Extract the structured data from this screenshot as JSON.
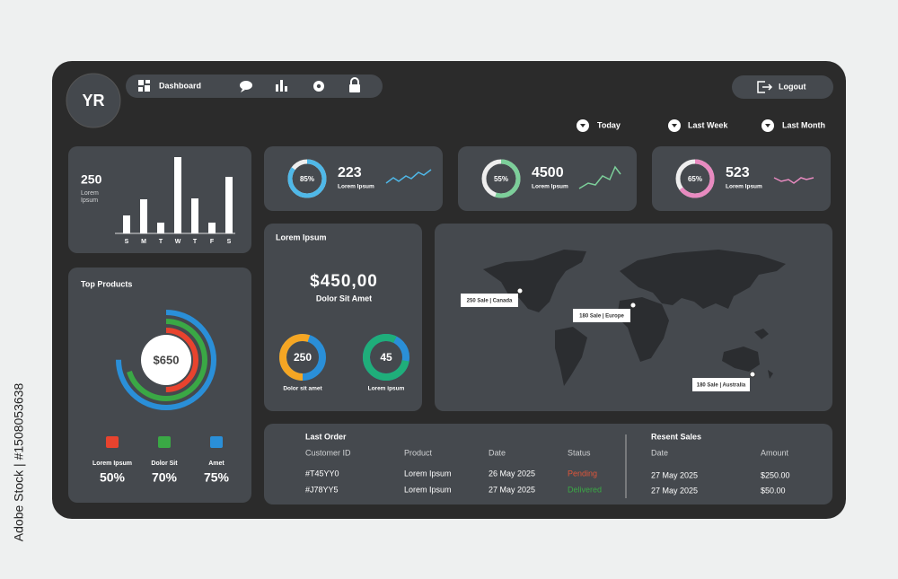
{
  "watermark": "Adobe Stock | #1508053638",
  "avatar": "YR",
  "nav": {
    "dashboard": "Dashboard",
    "logout": "Logout"
  },
  "filters": [
    "Today",
    "Last Week",
    "Last Month"
  ],
  "summary": {
    "value": 250,
    "label_lines": [
      "Lorem",
      "Ipsum"
    ],
    "bars": {
      "categories": [
        "S",
        "M",
        "T",
        "W",
        "T",
        "F",
        "S"
      ],
      "values": [
        20,
        38,
        12,
        85,
        39,
        12,
        63
      ]
    }
  },
  "stats": [
    {
      "percent": 85,
      "percent_label": "85%",
      "value": 223,
      "label": "Lorem Ipsum",
      "color": "#4fb8e8"
    },
    {
      "percent": 55,
      "percent_label": "55%",
      "value": 4500,
      "label": "Lorem Ipsum",
      "color": "#7ccf9a"
    },
    {
      "percent": 65,
      "percent_label": "65%",
      "value": 523,
      "label": "Lorem Ipsum",
      "color": "#e88ac0"
    }
  ],
  "top_products": {
    "title": "Top Products",
    "center": "$650",
    "items": [
      {
        "name": "Lorem Ipsum",
        "value": 50,
        "label": "50%",
        "color": "#e8432e"
      },
      {
        "name": "Dolor Sit",
        "value": 70,
        "label": "70%",
        "color": "#3aa845"
      },
      {
        "name": "Amet",
        "value": 75,
        "label": "75%",
        "color": "#2a8fd8"
      }
    ]
  },
  "revenue": {
    "title": "Lorem Ipsum",
    "amount": "$450,00",
    "subtitle": "Dolor Sit Amet",
    "donuts": [
      {
        "value": 250,
        "label": "Dolor sit amet"
      },
      {
        "value": 45,
        "label": "Lorem ipsum"
      }
    ]
  },
  "map": {
    "labels": [
      "250 Sale | Canada",
      "180 Sale | Europe",
      "180 Sale | Australia"
    ]
  },
  "last_order": {
    "title": "Last Order",
    "headers": [
      "Customer ID",
      "Product",
      "Date",
      "Status"
    ],
    "rows": [
      [
        "#T45YY0",
        "Lorem Ipsum",
        "26 May 2025",
        "Pending"
      ],
      [
        "#J78YY5",
        "Lorem Ipsum",
        "27 May 2025",
        "Delivered"
      ]
    ]
  },
  "recent_sales": {
    "title": "Resent Sales",
    "headers": [
      "Date",
      "Amount"
    ],
    "rows": [
      [
        "27 May 2025",
        "$250.00"
      ],
      [
        "27 May 2025",
        "$50.00"
      ]
    ]
  }
}
